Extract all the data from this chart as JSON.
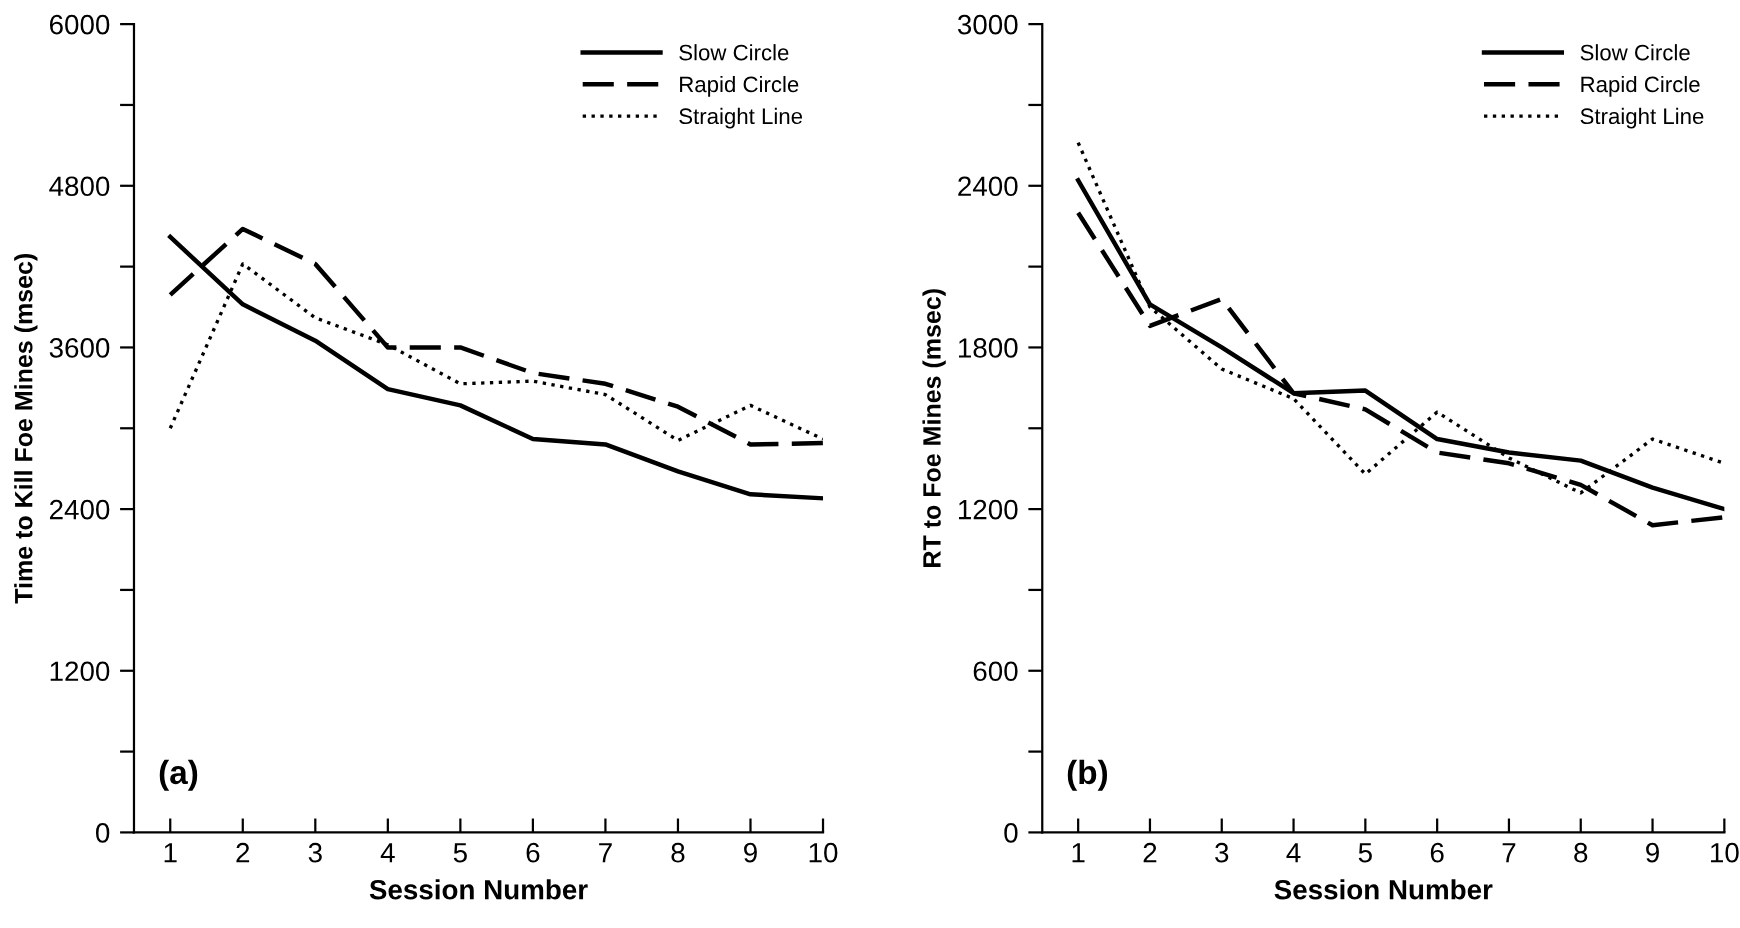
{
  "chart_data": [
    {
      "type": "line",
      "ylabel": "Time to Kill Foe Mines (msec)",
      "xlabel": "Session Number",
      "annotations": [
        "(a)"
      ],
      "x": [
        1,
        2,
        3,
        4,
        5,
        6,
        7,
        8,
        9,
        10
      ],
      "xlim": [
        0.5,
        10
      ],
      "xticks": [
        1,
        2,
        3,
        4,
        5,
        6,
        7,
        8,
        9,
        10
      ],
      "ylim": [
        0,
        6000
      ],
      "yticks": [
        0,
        {
          "value": 600,
          "label": null
        },
        1200,
        {
          "value": 1800,
          "label": null
        },
        2400,
        {
          "value": 3000,
          "label": null
        },
        3600,
        {
          "value": 4200,
          "label": null
        },
        4800,
        {
          "value": 5400,
          "label": null
        },
        6000
      ],
      "grid": false,
      "legend": "top right",
      "marker": "none",
      "series": [
        {
          "name": "Slow Circle",
          "color": "#000000",
          "line_style": "solid",
          "values": [
            4420,
            3920,
            3650,
            3290,
            3170,
            2920,
            2880,
            2680,
            2510,
            2480
          ]
        },
        {
          "name": "Rapid Circle",
          "color": "#000000",
          "line_style": "dashed",
          "values": [
            3990,
            4480,
            4220,
            3600,
            3600,
            3410,
            3330,
            3160,
            2880,
            2890
          ]
        },
        {
          "name": "Straight Line",
          "color": "#000000",
          "line_style": "dotted",
          "values": [
            3000,
            4220,
            3820,
            3620,
            3330,
            3350,
            3250,
            2910,
            3170,
            2920
          ]
        }
      ]
    },
    {
      "type": "line",
      "ylabel": "RT to Foe Mines (msec)",
      "xlabel": "Session Number",
      "annotations": [
        "(b)"
      ],
      "x": [
        1,
        2,
        3,
        4,
        5,
        6,
        7,
        8,
        9,
        10
      ],
      "xlim": [
        0.5,
        10
      ],
      "xticks": [
        1,
        2,
        3,
        4,
        5,
        6,
        7,
        8,
        9,
        10
      ],
      "ylim": [
        0,
        3000
      ],
      "yticks": [
        0,
        {
          "value": 300,
          "label": null
        },
        600,
        {
          "value": 900,
          "label": null
        },
        1200,
        {
          "value": 1500,
          "label": null
        },
        1800,
        {
          "value": 2100,
          "label": null
        },
        2400,
        {
          "value": 2700,
          "label": null
        },
        3000
      ],
      "grid": false,
      "legend": "top right",
      "marker": "none",
      "series": [
        {
          "name": "Slow Circle",
          "color": "#000000",
          "line_style": "solid",
          "values": [
            2420,
            1960,
            1800,
            1630,
            1640,
            1460,
            1410,
            1380,
            1280,
            1200
          ]
        },
        {
          "name": "Rapid Circle",
          "color": "#000000",
          "line_style": "dashed",
          "values": [
            2300,
            1880,
            1980,
            1630,
            1570,
            1410,
            1370,
            1290,
            1140,
            1170
          ]
        },
        {
          "name": "Straight Line",
          "color": "#000000",
          "line_style": "dotted",
          "values": [
            2560,
            1950,
            1720,
            1610,
            1330,
            1560,
            1390,
            1260,
            1460,
            1370
          ]
        }
      ]
    }
  ]
}
